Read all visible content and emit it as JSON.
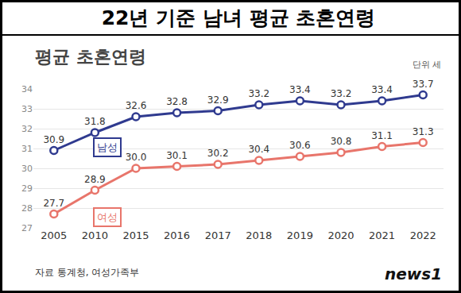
{
  "chart_data": {
    "type": "line",
    "title": "22년 기준 남녀 평균 초혼연령",
    "subtitle": "평균 초혼연령",
    "annotations": [
      "단위 세",
      "자료 통계청, 여성가족부",
      "news1"
    ],
    "categories": [
      "2005",
      "2010",
      "2015",
      "2016",
      "2017",
      "2018",
      "2019",
      "2020",
      "2021",
      "2022"
    ],
    "series": [
      {
        "name": "남성",
        "color": "#2f3a8f",
        "marker": "circle",
        "values": [
          30.9,
          31.8,
          32.6,
          32.8,
          32.9,
          33.2,
          33.4,
          33.2,
          33.4,
          33.7
        ]
      },
      {
        "name": "여성",
        "color": "#e8756b",
        "marker": "circle",
        "values": [
          27.7,
          28.9,
          30.0,
          30.1,
          30.2,
          30.4,
          30.6,
          30.8,
          31.1,
          31.3
        ],
        "value_labels": [
          "27.7",
          "28.9",
          "30.0",
          "30.1",
          "30.2",
          "30.4",
          "30.6",
          "30.8",
          "31.1",
          "31.3"
        ]
      }
    ],
    "ylim": [
      27,
      34
    ],
    "yticks": [
      27,
      28,
      29,
      30,
      31,
      32,
      33,
      34
    ],
    "grid": true,
    "data_labels": true
  }
}
